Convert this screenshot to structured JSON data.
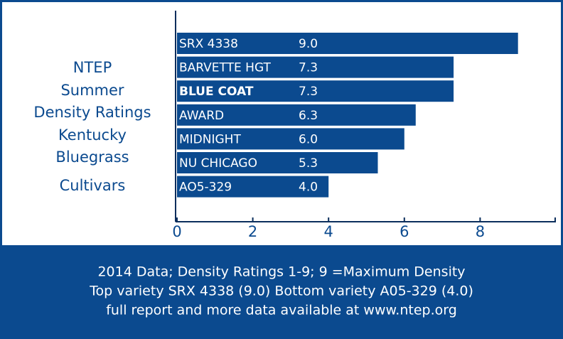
{
  "chart_data": {
    "type": "barh",
    "title": [
      "NTEP",
      "Summer",
      "Density Ratings",
      "Kentucky",
      "Bluegrass",
      "Cultivars"
    ],
    "categories": [
      "SRX 4338",
      "BARVETTE HGT",
      "BLUE COAT",
      "AWARD",
      "MIDNIGHT",
      "NU CHICAGO",
      "AO5-329"
    ],
    "values": [
      9.0,
      7.3,
      7.3,
      6.3,
      6.0,
      5.3,
      4.0
    ],
    "value_labels": [
      "9.0",
      "7.3",
      "7.3",
      "6.3",
      "6.0",
      "5.3",
      "4.0"
    ],
    "highlight_index": 2,
    "color": "#0b4a8f",
    "xlim": [
      0,
      10
    ],
    "xticks": [
      0,
      2,
      4,
      6,
      8
    ],
    "notes": [
      "2014 Data; Density Ratings 1-9; 9 =Maximum Density",
      "Top variety SRX 4338 (9.0) Bottom variety A05-329 (4.0)",
      "full report and more data available at www.ntep.org"
    ]
  }
}
